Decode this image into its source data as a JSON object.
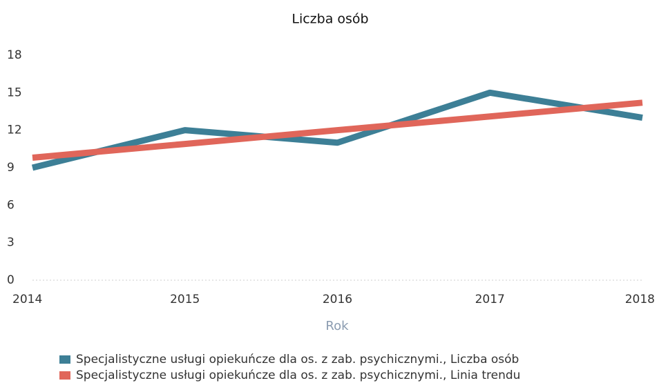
{
  "chart_data": {
    "type": "line",
    "title": "Liczba osób",
    "xlabel": "Rok",
    "x": [
      2014,
      2015,
      2016,
      2017,
      2018
    ],
    "xlim": [
      2014,
      2018
    ],
    "xticks": [
      2014,
      2015,
      2016,
      2017,
      2018
    ],
    "ylim": [
      0,
      18
    ],
    "yticks": [
      0,
      3,
      6,
      9,
      12,
      15,
      18
    ],
    "grid": false,
    "legend": "bottom",
    "series": [
      {
        "name": "Specjalistyczne usługi opiekuńcze dla os. z zab. psychicznymi., Liczba osób",
        "color": "#3d7f96",
        "values": [
          9,
          12,
          11,
          15,
          13
        ]
      },
      {
        "name": "Specjalistyczne usługi opiekuńcze dla os. z zab. psychicznymi., Linia trendu",
        "color": "#e0665a",
        "values": [
          9.8,
          10.9,
          12,
          13.1,
          14.2
        ]
      }
    ]
  }
}
